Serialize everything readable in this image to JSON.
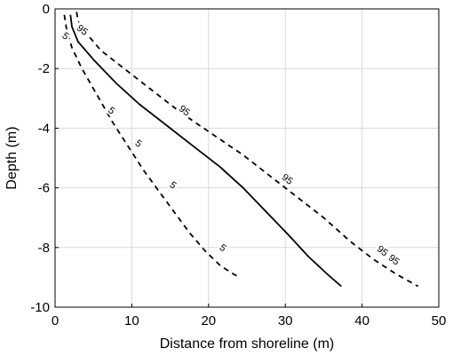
{
  "chart_data": {
    "type": "line",
    "title": "",
    "xlabel": "Distance from shoreline (m)",
    "ylabel": "Depth (m)",
    "xlim": [
      0,
      50
    ],
    "ylim": [
      -10,
      0
    ],
    "xticks": [
      0,
      10,
      20,
      30,
      40,
      50
    ],
    "yticks": [
      0,
      -2,
      -4,
      -6,
      -8,
      -10
    ],
    "grid": true,
    "legend": "none",
    "series": [
      {
        "label": "5",
        "style": "dashed",
        "color": "#000000",
        "x": [
          1.2,
          1.5,
          2.2,
          3.5,
          5.5,
          7.5,
          9.5,
          11.5,
          13.5,
          15.5,
          17.5,
          19.5,
          21.5,
          23.0,
          24.0
        ],
        "y": [
          -0.2,
          -0.7,
          -1.3,
          -2.0,
          -2.9,
          -3.8,
          -4.6,
          -5.4,
          -6.1,
          -6.8,
          -7.5,
          -8.1,
          -8.6,
          -8.85,
          -9.0
        ]
      },
      {
        "label": "",
        "style": "solid",
        "color": "#000000",
        "x": [
          2.0,
          2.2,
          3.0,
          5.0,
          8.0,
          11.0,
          14.5,
          18.0,
          21.5,
          24.5,
          27.5,
          30.5,
          33.0,
          35.5,
          37.3
        ],
        "y": [
          -0.2,
          -0.6,
          -1.1,
          -1.7,
          -2.5,
          -3.2,
          -3.9,
          -4.6,
          -5.3,
          -6.0,
          -6.8,
          -7.6,
          -8.3,
          -8.9,
          -9.3
        ]
      },
      {
        "label": "95",
        "style": "dashed",
        "color": "#000000",
        "x": [
          2.8,
          3.0,
          4.0,
          6.0,
          9.5,
          13.0,
          16.5,
          20.5,
          24.5,
          28.0,
          31.5,
          35.0,
          38.5,
          41.5,
          44.5,
          47.3
        ],
        "y": [
          -0.1,
          -0.4,
          -0.8,
          -1.4,
          -2.1,
          -2.8,
          -3.5,
          -4.2,
          -4.9,
          -5.6,
          -6.3,
          -7.0,
          -7.8,
          -8.4,
          -8.9,
          -9.3
        ]
      }
    ],
    "contour_labels": [
      {
        "text": "5",
        "x": 1.4,
        "y": -0.9
      },
      {
        "text": "5",
        "x": 7.4,
        "y": -3.4
      },
      {
        "text": "5",
        "x": 10.9,
        "y": -4.5
      },
      {
        "text": "5",
        "x": 15.4,
        "y": -5.9
      },
      {
        "text": "5",
        "x": 21.9,
        "y": -8.0
      },
      {
        "text": "95",
        "x": 3.6,
        "y": -0.7
      },
      {
        "text": "95",
        "x": 16.9,
        "y": -3.4
      },
      {
        "text": "95",
        "x": 30.3,
        "y": -5.7
      },
      {
        "text": "95",
        "x": 42.7,
        "y": -8.1
      },
      {
        "text": "95",
        "x": 44.2,
        "y": -8.4
      }
    ]
  }
}
